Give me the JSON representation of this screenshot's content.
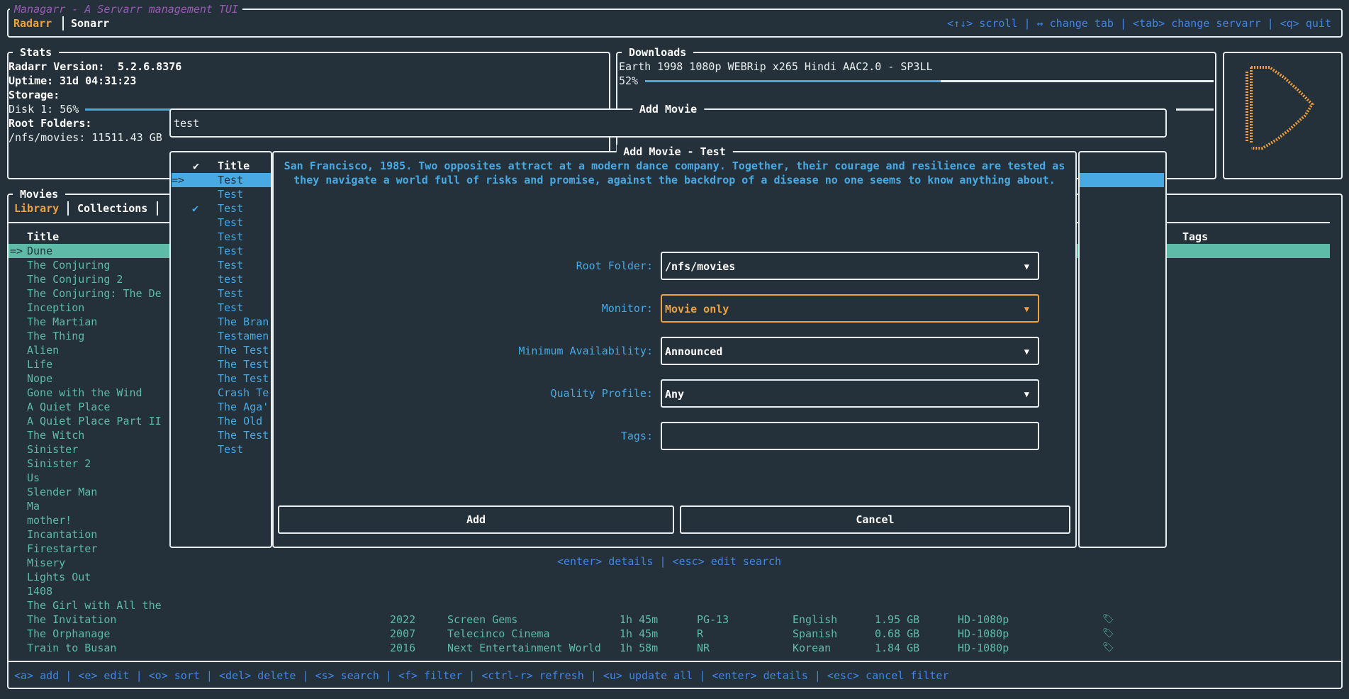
{
  "app": {
    "title": "Managarr - A Servarr management TUI",
    "servarr_tabs": [
      {
        "label": "Radarr",
        "active": true
      },
      {
        "label": "Sonarr",
        "active": false
      }
    ],
    "help": "<↑↓> scroll | ↔ change tab | <tab> change servarr | <q> quit"
  },
  "stats": {
    "title": "Stats",
    "version_label": "Radarr Version:",
    "version": "5.2.6.8376",
    "uptime_label": "Uptime:",
    "uptime": "31d 04:31:23",
    "storage_label": "Storage:",
    "disk_label": "Disk 1: 56%",
    "disk_percent": 56,
    "root_folders_label": "Root Folders:",
    "root_folder": "/nfs/movies: 11511.43 GB"
  },
  "downloads": {
    "title": "Downloads",
    "items": [
      {
        "name": "Earth 1998 1080p WEBRip x265 Hindi AAC2.0 - SP3LL",
        "progress_label": "52%",
        "progress": 52
      }
    ]
  },
  "logo": {
    "color": "#f0a03c",
    "icon": "radarr-play-logo"
  },
  "movies": {
    "title": "Movies",
    "tabs": [
      {
        "label": "Library",
        "active": true
      },
      {
        "label": "Collections",
        "active": false
      }
    ],
    "column_title": "Title",
    "column_tags": "Tags",
    "selected_marker": "=>",
    "rows": [
      "Dune",
      "The Conjuring",
      "The Conjuring 2",
      "The Conjuring: The De",
      "Inception",
      "The Martian",
      "The Thing",
      "Alien",
      "Life",
      "Nope",
      "Gone with the Wind",
      "A Quiet Place",
      "A Quiet Place Part II",
      "The Witch",
      "Sinister",
      "Sinister 2",
      "Us",
      "Slender Man",
      "Ma",
      "mother!",
      "Incantation",
      "Firestarter",
      "Misery",
      "Lights Out",
      "1408",
      "The Girl with All the",
      "The Invitation",
      "The Orphanage",
      "Train to Busan"
    ],
    "detail_rows": [
      {
        "title": "The Invitation",
        "year": "2022",
        "studio": "Screen Gems",
        "runtime": "1h 45m",
        "rating": "PG-13",
        "language": "English",
        "size": "1.95 GB",
        "quality": "HD-1080p",
        "icon": "bookmark-icon"
      },
      {
        "title": "The Orphanage",
        "year": "2007",
        "studio": "Telecinco Cinema",
        "runtime": "1h 45m",
        "rating": "R",
        "language": "Spanish",
        "size": "0.68 GB",
        "quality": "HD-1080p",
        "icon": "bookmark-icon"
      },
      {
        "title": "Train to Busan",
        "year": "2016",
        "studio": "Next Entertainment World",
        "runtime": "1h 58m",
        "rating": "NR",
        "language": "Korean",
        "size": "1.84 GB",
        "quality": "HD-1080p",
        "icon": "bookmark-icon"
      }
    ],
    "footer": "<a> add | <e> edit | <o> sort | <del> delete | <s> search | <f> filter | <ctrl-r> refresh | <u> update all | <enter> details | <esc> cancel filter"
  },
  "add_movie_search": {
    "title": "Add Movie",
    "query": "test"
  },
  "search_results": {
    "check_header": "✔",
    "title_header": "Title",
    "selected_marker": "=>",
    "items": [
      {
        "title": "Test",
        "checked": false,
        "selected": true
      },
      {
        "title": "Test",
        "checked": false
      },
      {
        "title": "Test",
        "checked": true
      },
      {
        "title": "Test",
        "checked": false
      },
      {
        "title": "Test",
        "checked": false
      },
      {
        "title": "Test",
        "checked": false
      },
      {
        "title": "Test",
        "checked": false
      },
      {
        "title": "test",
        "checked": false
      },
      {
        "title": "Test",
        "checked": false
      },
      {
        "title": "Test",
        "checked": false
      },
      {
        "title": "The Bran",
        "checked": false
      },
      {
        "title": "Testamen",
        "checked": false
      },
      {
        "title": "The Test",
        "checked": false
      },
      {
        "title": "The Test",
        "checked": false
      },
      {
        "title": "The Test",
        "checked": false
      },
      {
        "title": "Crash Te",
        "checked": false
      },
      {
        "title": "The Aga'",
        "checked": false
      },
      {
        "title": "The Old",
        "checked": false
      },
      {
        "title": "The Test",
        "checked": false
      },
      {
        "title": "Test",
        "checked": false
      }
    ],
    "help": "<enter> details | <esc> edit search"
  },
  "add_movie_modal": {
    "title": "Add Movie - Test",
    "overview_line1": "San Francisco, 1985. Two opposites attract at a modern dance company. Together, their courage and resilience are tested as",
    "overview_line2": "they navigate a world full of risks and promise, against the backdrop of a disease no one seems to know anything about.",
    "fields": {
      "root_folder": {
        "label": "Root Folder:",
        "value": "/nfs/movies"
      },
      "monitor": {
        "label": "Monitor:",
        "value": "Movie only",
        "focused": true
      },
      "minimum_availability": {
        "label": "Minimum Availability:",
        "value": "Announced"
      },
      "quality_profile": {
        "label": "Quality Profile:",
        "value": "Any"
      },
      "tags": {
        "label": "Tags:",
        "value": ""
      }
    },
    "add_label": "Add",
    "cancel_label": "Cancel"
  },
  "colors": {
    "background": "#24313a",
    "accent": "#f0a03c",
    "teal": "#5ebba8",
    "help_blue": "#3f86e6",
    "highlight_blue": "#49a9e3"
  }
}
